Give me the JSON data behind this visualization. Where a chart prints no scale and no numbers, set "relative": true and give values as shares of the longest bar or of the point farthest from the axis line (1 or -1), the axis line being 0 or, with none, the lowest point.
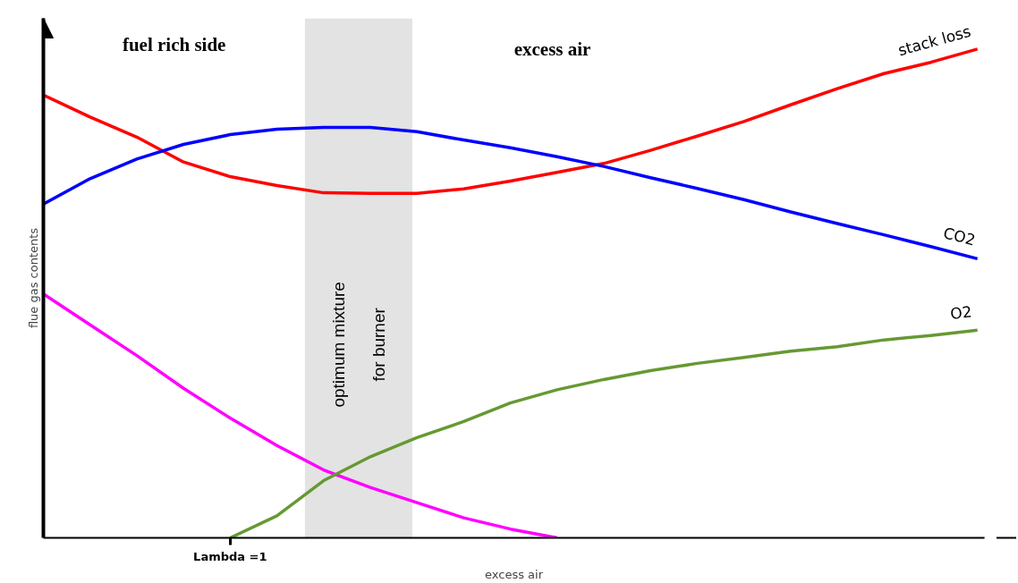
{
  "chart_data": {
    "type": "line",
    "relative": true,
    "xlabel": "excess air",
    "ylabel": "flue gas contents",
    "categories": [
      null,
      null,
      null,
      null,
      null,
      null,
      null,
      null,
      null,
      null,
      null,
      null,
      null,
      null,
      null,
      null,
      null,
      null,
      null,
      null,
      null
    ],
    "tick_labels": "x",
    "grid": false,
    "marker": "none",
    "line_style": "solid",
    "annotations": [
      "fuel rich side",
      "excess air",
      "Lambda =1",
      "optimum mixture\nfor burner"
    ],
    "series": [
      {
        "name": "stack loss",
        "color": "#ff0000",
        "values": [
          0.906,
          0.861,
          0.82,
          0.769,
          0.739,
          0.721,
          0.706,
          0.705,
          0.705,
          0.714,
          0.73,
          0.748,
          0.766,
          0.793,
          0.822,
          0.852,
          0.886,
          0.919,
          0.95,
          0.973,
          1.0
        ]
      },
      {
        "name": "CO2",
        "color": "#0000ff",
        "values": [
          0.683,
          0.735,
          0.775,
          0.805,
          0.825,
          0.836,
          0.84,
          0.84,
          0.831,
          0.814,
          0.798,
          0.78,
          0.76,
          0.737,
          0.715,
          0.692,
          0.667,
          0.643,
          0.62,
          0.596,
          0.571
        ]
      },
      {
        "color": "#ff00ff",
        "values": [
          0.499,
          0.436,
          0.373,
          0.306,
          0.245,
          0.189,
          0.139,
          0.103,
          0.072,
          0.041,
          0.018,
          0.0,
          null,
          null,
          null,
          null,
          null,
          null,
          null,
          null,
          null
        ]
      },
      {
        "name": "O2",
        "color": "#669933",
        "values": [
          null,
          null,
          null,
          null,
          0.0,
          0.045,
          0.117,
          0.166,
          0.205,
          0.238,
          0.276,
          0.303,
          0.324,
          0.342,
          0.357,
          0.369,
          0.382,
          0.391,
          0.405,
          0.414,
          0.425
        ]
      }
    ]
  }
}
